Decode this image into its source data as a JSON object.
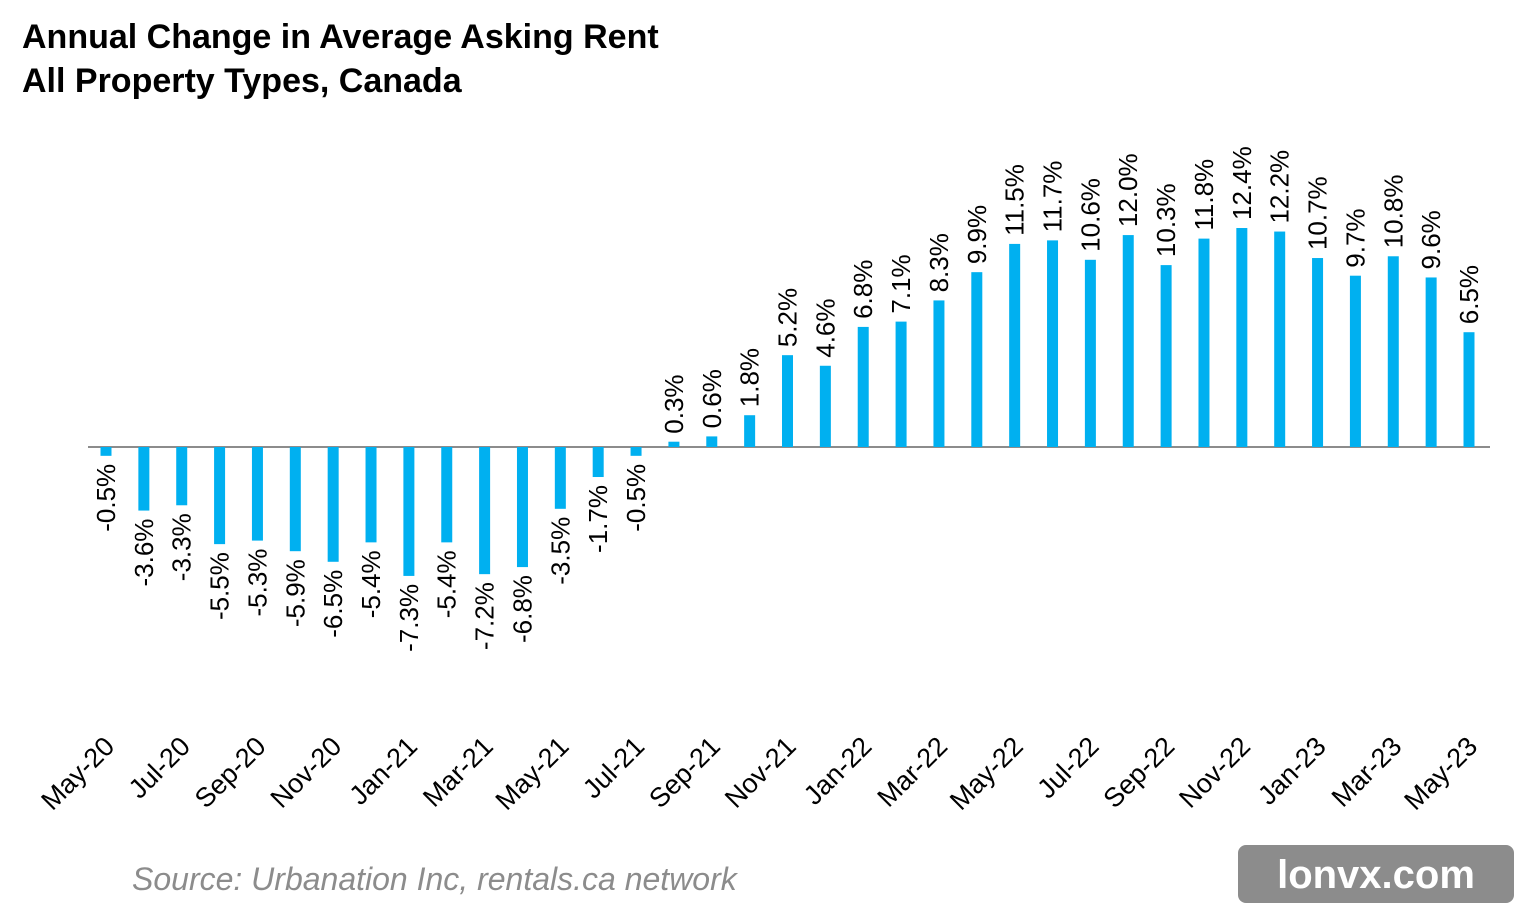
{
  "chart_data": {
    "type": "bar",
    "title": "Annual Change in Average Asking Rent",
    "subtitle": "All Property Types, Canada",
    "source": "Source: Urbanation Inc, rentals.ca network",
    "watermark": "lonvx.com",
    "categories": [
      "May-20",
      null,
      "Jul-20",
      null,
      "Sep-20",
      null,
      "Nov-20",
      null,
      "Jan-21",
      null,
      "Mar-21",
      null,
      "May-21",
      null,
      "Jul-21",
      null,
      "Sep-21",
      null,
      "Nov-21",
      null,
      "Jan-22",
      null,
      "Mar-22",
      null,
      "May-22",
      null,
      "Jul-22",
      null,
      "Sep-22",
      null,
      "Nov-22",
      null,
      "Jan-23",
      null,
      "Mar-23",
      null,
      "May-23"
    ],
    "values": [
      -0.5,
      -3.6,
      -3.3,
      -5.5,
      -5.3,
      -5.9,
      -6.5,
      -5.4,
      -7.3,
      -5.4,
      -7.2,
      -6.8,
      -3.5,
      -1.7,
      -0.5,
      0.3,
      0.6,
      1.8,
      5.2,
      4.6,
      6.8,
      7.1,
      8.3,
      9.9,
      11.5,
      11.7,
      10.6,
      12.0,
      10.3,
      11.8,
      12.4,
      12.2,
      10.7,
      9.7,
      10.8,
      9.6,
      6.5
    ],
    "value_labels": [
      "-0.5%",
      "-3.6%",
      "-3.3%",
      "-5.5%",
      "-5.3%",
      "-5.9%",
      "-6.5%",
      "-5.4%",
      "-7.3%",
      "-5.4%",
      "-7.2%",
      "-6.8%",
      "-3.5%",
      "-1.7%",
      "-0.5%",
      "0.3%",
      "0.6%",
      "1.8%",
      "5.2%",
      "4.6%",
      "6.8%",
      "7.1%",
      "8.3%",
      "9.9%",
      "11.5%",
      "11.7%",
      "10.6%",
      "12.0%",
      "10.3%",
      "11.8%",
      "12.4%",
      "12.2%",
      "10.7%",
      "9.7%",
      "10.8%",
      "9.6%",
      "6.5%"
    ],
    "color": "#00b0f0"
  }
}
